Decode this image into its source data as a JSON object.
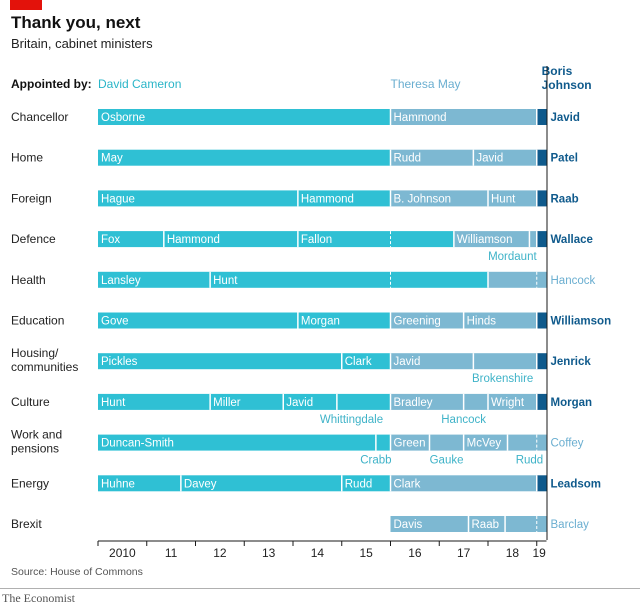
{
  "header": {
    "title": "Thank you, next",
    "subtitle": "Britain, cabinet ministers"
  },
  "footer": {
    "source": "Source: House of Commons",
    "brand": "The Economist"
  },
  "chart_data": {
    "type": "timeline-bar",
    "legend_label": "Appointed by:",
    "appointers": [
      {
        "name": "David Cameron",
        "color": "#2fc0d4"
      },
      {
        "name": "Theresa May",
        "color": "#7db8d2"
      },
      {
        "name": "Boris Johnson",
        "color": "#0f5a8c"
      }
    ],
    "xlim": [
      2010.0,
      2019.6
    ],
    "x_ticks": [
      {
        "value": 2010,
        "label": "2010"
      },
      {
        "value": 2011,
        "label": "11"
      },
      {
        "value": 2012,
        "label": "12"
      },
      {
        "value": 2013,
        "label": "13"
      },
      {
        "value": 2014,
        "label": "14"
      },
      {
        "value": 2015,
        "label": "15"
      },
      {
        "value": 2016,
        "label": "16"
      },
      {
        "value": 2017,
        "label": "17"
      },
      {
        "value": 2018,
        "label": "18"
      },
      {
        "value": 2019,
        "label": "19"
      }
    ],
    "rows": [
      {
        "label": "Chancellor",
        "current": "Javid",
        "segments": [
          {
            "name": "Osborne",
            "start": 2010.0,
            "end": 2016.0,
            "by": 0
          },
          {
            "name": "Hammond",
            "start": 2016.0,
            "end": 2019.0,
            "by": 1
          },
          {
            "name": "",
            "start": 2019.0,
            "end": 2019.2,
            "by": 2
          }
        ]
      },
      {
        "label": "Home",
        "current": "Patel",
        "segments": [
          {
            "name": "May",
            "start": 2010.0,
            "end": 2016.0,
            "by": 0
          },
          {
            "name": "Rudd",
            "start": 2016.0,
            "end": 2017.7,
            "by": 1
          },
          {
            "name": "Javid",
            "start": 2017.7,
            "end": 2019.0,
            "by": 1
          },
          {
            "name": "",
            "start": 2019.0,
            "end": 2019.2,
            "by": 2
          }
        ]
      },
      {
        "label": "Foreign",
        "current": "Raab",
        "segments": [
          {
            "name": "Hague",
            "start": 2010.0,
            "end": 2014.1,
            "by": 0
          },
          {
            "name": "Hammond",
            "start": 2014.1,
            "end": 2016.0,
            "by": 0
          },
          {
            "name": "B. Johnson",
            "start": 2016.0,
            "end": 2018.0,
            "by": 1
          },
          {
            "name": "Hunt",
            "start": 2018.0,
            "end": 2019.0,
            "by": 1
          },
          {
            "name": "",
            "start": 2019.0,
            "end": 2019.2,
            "by": 2
          }
        ]
      },
      {
        "label": "Defence",
        "current": "Wallace",
        "segments": [
          {
            "name": "Fox",
            "start": 2010.0,
            "end": 2011.35,
            "by": 0
          },
          {
            "name": "Hammond",
            "start": 2011.35,
            "end": 2014.1,
            "by": 0
          },
          {
            "name": "Fallon",
            "start": 2014.1,
            "end": 2017.3,
            "by": 0
          },
          {
            "name": "Williamson",
            "start": 2017.3,
            "end": 2018.85,
            "by": 1
          },
          {
            "name": "",
            "start": 2018.85,
            "end": 2019.0,
            "by": 1
          },
          {
            "name": "",
            "start": 2019.0,
            "end": 2019.2,
            "by": 2
          }
        ],
        "dividers": [
          2016.0
        ],
        "below": [
          {
            "name": "Mordaunt",
            "x": 2018.5
          }
        ]
      },
      {
        "label": "Health",
        "current": "Hancock",
        "segments": [
          {
            "name": "Lansley",
            "start": 2010.0,
            "end": 2012.3,
            "by": 0
          },
          {
            "name": "Hunt",
            "start": 2012.3,
            "end": 2018.0,
            "by": 0
          },
          {
            "name": "",
            "start": 2018.0,
            "end": 2019.2,
            "by": 1
          }
        ],
        "dividers": [
          2016.0,
          2019.0
        ],
        "current_style": "may"
      },
      {
        "label": "Education",
        "current": "Williamson",
        "segments": [
          {
            "name": "Gove",
            "start": 2010.0,
            "end": 2014.1,
            "by": 0
          },
          {
            "name": "Morgan",
            "start": 2014.1,
            "end": 2016.0,
            "by": 0
          },
          {
            "name": "Greening",
            "start": 2016.0,
            "end": 2017.5,
            "by": 1
          },
          {
            "name": "Hinds",
            "start": 2017.5,
            "end": 2019.0,
            "by": 1
          },
          {
            "name": "",
            "start": 2019.0,
            "end": 2019.2,
            "by": 2
          }
        ]
      },
      {
        "label": "Housing/ communities",
        "current": "Jenrick",
        "segments": [
          {
            "name": "Pickles",
            "start": 2010.0,
            "end": 2015.0,
            "by": 0
          },
          {
            "name": "Clark",
            "start": 2015.0,
            "end": 2016.0,
            "by": 0
          },
          {
            "name": "Javid",
            "start": 2016.0,
            "end": 2017.7,
            "by": 1
          },
          {
            "name": "",
            "start": 2017.7,
            "end": 2019.0,
            "by": 1
          },
          {
            "name": "",
            "start": 2019.0,
            "end": 2019.2,
            "by": 2
          }
        ],
        "below": [
          {
            "name": "Brokenshire",
            "x": 2018.3
          }
        ]
      },
      {
        "label": "Culture",
        "current": "Morgan",
        "segments": [
          {
            "name": "Hunt",
            "start": 2010.0,
            "end": 2012.3,
            "by": 0
          },
          {
            "name": "Miller",
            "start": 2012.3,
            "end": 2013.8,
            "by": 0
          },
          {
            "name": "Javid",
            "start": 2013.8,
            "end": 2014.9,
            "by": 0
          },
          {
            "name": "",
            "start": 2014.9,
            "end": 2016.0,
            "by": 0
          },
          {
            "name": "Bradley",
            "start": 2016.0,
            "end": 2017.5,
            "by": 1
          },
          {
            "name": "",
            "start": 2017.5,
            "end": 2018.0,
            "by": 1
          },
          {
            "name": "Wright",
            "start": 2018.0,
            "end": 2019.0,
            "by": 1
          },
          {
            "name": "",
            "start": 2019.0,
            "end": 2019.2,
            "by": 2
          }
        ],
        "below": [
          {
            "name": "Whittingdale",
            "x": 2015.2
          },
          {
            "name": "Hancock",
            "x": 2017.5
          }
        ]
      },
      {
        "label": "Work and pensions",
        "current": "Coffey",
        "segments": [
          {
            "name": "Duncan-Smith",
            "start": 2010.0,
            "end": 2015.7,
            "by": 0
          },
          {
            "name": "",
            "start": 2015.7,
            "end": 2016.0,
            "by": 0
          },
          {
            "name": "Green",
            "start": 2016.0,
            "end": 2016.8,
            "by": 1
          },
          {
            "name": "",
            "start": 2016.8,
            "end": 2017.5,
            "by": 1
          },
          {
            "name": "McVey",
            "start": 2017.5,
            "end": 2018.4,
            "by": 1
          },
          {
            "name": "",
            "start": 2018.4,
            "end": 2019.2,
            "by": 1
          }
        ],
        "dividers": [
          2019.0
        ],
        "current_style": "may",
        "below": [
          {
            "name": "Crabb",
            "x": 2015.7
          },
          {
            "name": "Gauke",
            "x": 2017.15
          },
          {
            "name": "Rudd",
            "x": 2018.85
          }
        ]
      },
      {
        "label": "Energy",
        "current": "Leadsom",
        "segments": [
          {
            "name": "Huhne",
            "start": 2010.0,
            "end": 2011.7,
            "by": 0
          },
          {
            "name": "Davey",
            "start": 2011.7,
            "end": 2015.0,
            "by": 0
          },
          {
            "name": "Rudd",
            "start": 2015.0,
            "end": 2016.0,
            "by": 0
          },
          {
            "name": "Clark",
            "start": 2016.0,
            "end": 2019.0,
            "by": 1
          },
          {
            "name": "",
            "start": 2019.0,
            "end": 2019.2,
            "by": 2
          }
        ]
      },
      {
        "label": "Brexit",
        "current": "Barclay",
        "segments": [
          {
            "name": "Davis",
            "start": 2016.0,
            "end": 2017.6,
            "by": 1
          },
          {
            "name": "Raab",
            "start": 2017.6,
            "end": 2018.35,
            "by": 1
          },
          {
            "name": "",
            "start": 2018.35,
            "end": 2019.2,
            "by": 1
          }
        ],
        "dividers": [
          2019.0
        ],
        "current_style": "may"
      }
    ]
  }
}
